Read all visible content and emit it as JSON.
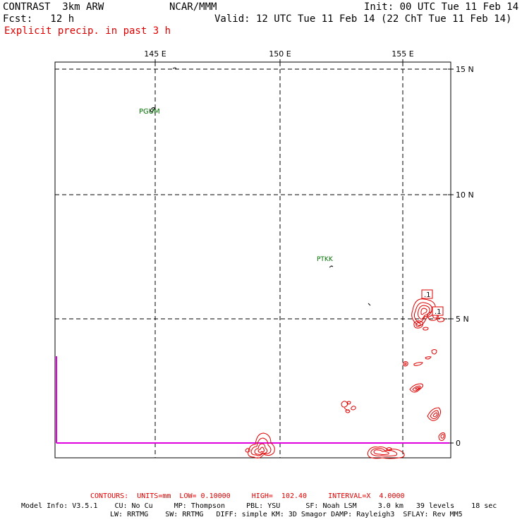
{
  "header": {
    "model": "CONTRAST  3km ARW",
    "org": "NCAR/MMM",
    "init": "Init: 00 UTC Tue 11 Feb 14",
    "fcst": "Fcst:   12 h",
    "valid": "Valid: 12 UTC Tue 11 Feb 14 (22 ChT Tue 11 Feb 14)",
    "field": "Explicit precip. in past 3 h"
  },
  "axes": {
    "lon_labels": [
      "145 E",
      "150 E",
      "155 E"
    ],
    "lat_labels": [
      "15 N",
      "10 N",
      "5 N",
      "0"
    ]
  },
  "stations": [
    "PGUM",
    "PTKK"
  ],
  "contour_labels": [
    ".1",
    ".1"
  ],
  "footer": {
    "contours": "CONTOURS:  UNITS=mm  LOW= 0.10000     HIGH=  102.40     INTERVAL=X  4.0000",
    "model_info_1": "Model Info: V3.5.1    CU: No Cu     MP: Thompson     PBL: YSU      SF: Noah LSM     3.0 km   39 levels    18 sec",
    "model_info_2": "LW: RRTMG    SW: RRTMG   DIFF: simple KM: 3D Smagor DAMP: Rayleigh3  SFLAY: Rev MM5"
  },
  "colors": {
    "precip_contour": "#e00000",
    "station_label": "#007000",
    "boundary": "#e000e0"
  }
}
